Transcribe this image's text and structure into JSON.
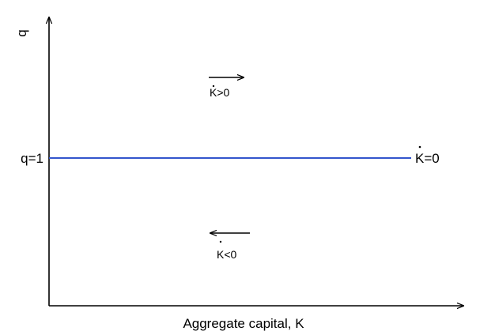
{
  "axes": {
    "y_label": "q",
    "x_label": "Aggregate capital, K"
  },
  "steady_state_line": {
    "left_label": "q=1",
    "right_label": "K=0",
    "color": "#3355cc"
  },
  "regions": {
    "above": {
      "label": "K>0",
      "direction": "right"
    },
    "below": {
      "label": "K<0",
      "direction": "left"
    }
  }
}
